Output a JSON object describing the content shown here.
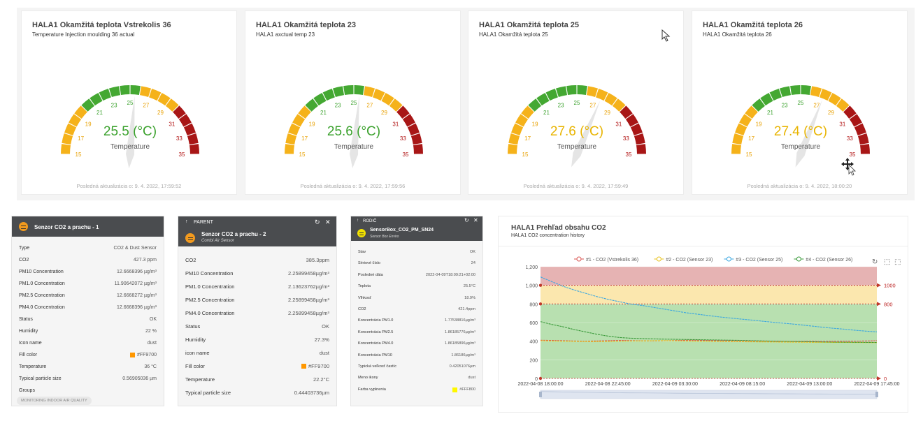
{
  "gauges": [
    {
      "title": "HALA1 Okamžitá teplota Vstrekolis 36",
      "subtitle": "Temperature Injection moulding 36 actual",
      "value": 25.5,
      "value_text": "25.5 (°C)",
      "label": "Temperature",
      "footer": "Posledná aktualizácia o: 9. 4. 2022, 17:59:52",
      "value_color": "#3aa12c"
    },
    {
      "title": "HALA1 Okamžitá teplota 23",
      "subtitle": "HALA1 axctual temp 23",
      "value": 25.6,
      "value_text": "25.6 (°C)",
      "label": "Temperature",
      "footer": "Posledná aktualizácia o: 9. 4. 2022, 17:59:56",
      "value_color": "#3aa12c"
    },
    {
      "title": "HALA1 Okamžitá teplota 25",
      "subtitle": "HALA1 Okamžitá teplota 25",
      "value": 27.6,
      "value_text": "27.6 (°C)",
      "label": "Temperature",
      "footer": "Posledná aktualizácia o: 9. 4. 2022, 17:59:49",
      "value_color": "#e8b400"
    },
    {
      "title": "HALA1 Okamžitá teplota 26",
      "subtitle": "HALA1 Okamžitá teplota 26",
      "value": 27.4,
      "value_text": "27.4 (°C)",
      "label": "Temperature",
      "footer": "Posledná aktualizácia o: 9. 4. 2022, 18:00:20",
      "value_color": "#e8b400"
    }
  ],
  "gauge_scale": {
    "min": 15,
    "max": 35,
    "ticks": [
      {
        "v": 15,
        "c": "#e8a000"
      },
      {
        "v": 17,
        "c": "#e8a000"
      },
      {
        "v": 19,
        "c": "#e8a000"
      },
      {
        "v": 21,
        "c": "#3aa12c"
      },
      {
        "v": 23,
        "c": "#3aa12c"
      },
      {
        "v": 25,
        "c": "#3aa12c"
      },
      {
        "v": 27,
        "c": "#e8a000"
      },
      {
        "v": 29,
        "c": "#e8a000"
      },
      {
        "v": 31,
        "c": "#b01010"
      },
      {
        "v": 33,
        "c": "#b01010"
      },
      {
        "v": 35,
        "c": "#b01010"
      }
    ],
    "bands": [
      {
        "from": 15,
        "to": 20,
        "color": "#f5b21a"
      },
      {
        "from": 20,
        "to": 26,
        "color": "#44a832"
      },
      {
        "from": 26,
        "to": 30,
        "color": "#f5b21a"
      },
      {
        "from": 30,
        "to": 35,
        "color": "#a81616"
      }
    ]
  },
  "panel1": {
    "title": "Senzor CO2 a prachu - 1",
    "icon_color": "#f29a1e",
    "rows": [
      {
        "k": "Type",
        "v": "CO2 & Dust Sensor"
      },
      {
        "k": "CO2",
        "v": "427.3 ppm"
      },
      {
        "k": "PM10 Concentration",
        "v": "12.6668396 µg/m³"
      },
      {
        "k": "PM1.0 Concentration",
        "v": "11.90642072 µg/m³"
      },
      {
        "k": "PM2.5 Concentration",
        "v": "12.6668272 µg/m³"
      },
      {
        "k": "PM4.0 Concentration",
        "v": "12.6668396 µg/m³"
      },
      {
        "k": "Status",
        "v": "OK"
      },
      {
        "k": "Humidity",
        "v": "22 %"
      },
      {
        "k": "Icon name",
        "v": "dust"
      },
      {
        "k": "Fill color",
        "v": "#FF9700",
        "swatch": "#FF9700"
      },
      {
        "k": "Temperature",
        "v": "36 °C"
      },
      {
        "k": "Typical particle size",
        "v": "0.56905036 µm"
      },
      {
        "k": "Groups",
        "v": ""
      }
    ],
    "chip": "MONITORING INDOOR AIR QUALITY"
  },
  "panel2": {
    "parent": "PARENT",
    "title": "Senzor CO2 a prachu - 2",
    "subtitle": "Combi Air Sensor",
    "icon_color": "#f29a1e",
    "refresh": "↻",
    "close": "✕",
    "arrow": "↑",
    "rows": [
      {
        "k": "CO2",
        "v": "385.3ppm"
      },
      {
        "k": "PM10 Concentration",
        "v": "2.25899458µg/m³"
      },
      {
        "k": "PM1.0 Concentration",
        "v": "2.13623762µg/m³"
      },
      {
        "k": "PM2.5 Concentration",
        "v": "2.25899458µg/m³"
      },
      {
        "k": "PM4.0 Concentration",
        "v": "2.25899458µg/m³"
      },
      {
        "k": "Status",
        "v": "OK"
      },
      {
        "k": "Humidity",
        "v": "27.3%"
      },
      {
        "k": "icon name",
        "v": "dust"
      },
      {
        "k": "Fill color",
        "v": "#FF9700",
        "swatch": "#FF9700"
      },
      {
        "k": "Temperature",
        "v": "22.2°C"
      },
      {
        "k": "Typical particle size",
        "v": "0.44403736µm"
      }
    ]
  },
  "panel3": {
    "parent": "RODIČ",
    "title": "SensorBox_CO2_PM_SN24",
    "subtitle": "Sensor Box Enviro",
    "icon_color": "#f2e200",
    "refresh": "↻",
    "close": "✕",
    "arrow": "↑",
    "rows": [
      {
        "k": "Stav",
        "v": "OK"
      },
      {
        "k": "Sériové číslo",
        "v": "24"
      },
      {
        "k": "Posledné dáta",
        "v": "2022-04-09T18:09:21+02:00"
      },
      {
        "k": "Teplota",
        "v": "25.5°C"
      },
      {
        "k": "Vlhkosť",
        "v": "18.9%"
      },
      {
        "k": "CO2",
        "v": "421.4ppm"
      },
      {
        "k": "Koncentrácia PM1.0",
        "v": "1.77538816µg/m³"
      },
      {
        "k": "Koncentrácia PM2.5",
        "v": "1.86185776µg/m³"
      },
      {
        "k": "Koncentrácia PM4.0",
        "v": "1.86185896µg/m³"
      },
      {
        "k": "Koncentrácia PM10",
        "v": "1.86186µg/m³"
      },
      {
        "k": "Typická veľkosť častíc",
        "v": "0.42051076µm"
      },
      {
        "k": "Meno ikony",
        "v": "dust"
      },
      {
        "k": "Farba vyplnenia",
        "v": "#FFF800",
        "swatch": "#FFF800"
      }
    ]
  },
  "chart": {
    "title": "HALA1 Prehľad obsahu CO2",
    "subtitle": "HALA1 CO2 concentration history",
    "toolbar": {
      "refresh": "↻",
      "zoom": "⬚",
      "restore": "⬚"
    }
  },
  "chart_data": {
    "type": "line",
    "x_ticks": [
      "2022-04-08 18:00:00",
      "2022-04-08 22:45:00",
      "2022-04-09 03:30:00",
      "2022-04-09 08:15:00",
      "2022-04-09 13:00:00",
      "2022-04-09 17:45:00"
    ],
    "ylim": [
      0,
      1200
    ],
    "y_ticks": [
      0,
      200,
      400,
      600,
      800,
      1000,
      1200
    ],
    "zones": [
      {
        "from": 0,
        "to": 800,
        "color": "#b8e0b0"
      },
      {
        "from": 800,
        "to": 1000,
        "color": "#fbe7ae"
      },
      {
        "from": 1000,
        "to": 1200,
        "color": "#e6b3b3"
      }
    ],
    "markers": [
      {
        "value": 1000,
        "label": "1000"
      },
      {
        "value": 800,
        "label": "800"
      },
      {
        "value": 0,
        "label": "0"
      }
    ],
    "series": [
      {
        "name": "#1 - CO2 (Vstrekolis 36)",
        "color": "#d9534f",
        "values": [
          410,
          408,
          405,
          402,
          400,
          402,
          405,
          408,
          406,
          404,
          403,
          405,
          407,
          410,
          410,
          408,
          406,
          405,
          404,
          402,
          400,
          398,
          397,
          398,
          399,
          398,
          399,
          400,
          400,
          402,
          405
        ]
      },
      {
        "name": "#2 - CO2 (Sensor 23)",
        "color": "#e8c21b",
        "values": [
          405,
          402,
          400,
          398,
          396,
          395,
          397,
          400,
          402,
          403,
          405,
          406,
          404,
          402,
          400,
          398,
          396,
          395,
          394,
          393,
          392,
          391,
          390,
          389,
          388,
          388,
          387,
          387,
          386,
          385,
          385
        ]
      },
      {
        "name": "#3 - CO2 (Sensor 25)",
        "color": "#3ba7e0",
        "values": [
          1090,
          1040,
          990,
          950,
          915,
          880,
          850,
          825,
          800,
          785,
          765,
          745,
          725,
          705,
          690,
          675,
          660,
          648,
          636,
          625,
          612,
          600,
          590,
          578,
          565,
          552,
          540,
          530,
          518,
          508,
          500
        ]
      },
      {
        "name": "#4 - CO2 (Sensor 26)",
        "color": "#3a9a3a",
        "values": [
          610,
          580,
          555,
          525,
          500,
          475,
          455,
          440,
          432,
          428,
          425,
          422,
          420,
          418,
          416,
          414,
          412,
          410,
          408,
          405,
          402,
          400,
          398,
          396,
          394,
          392,
          390,
          389,
          388,
          387,
          386
        ]
      }
    ]
  }
}
